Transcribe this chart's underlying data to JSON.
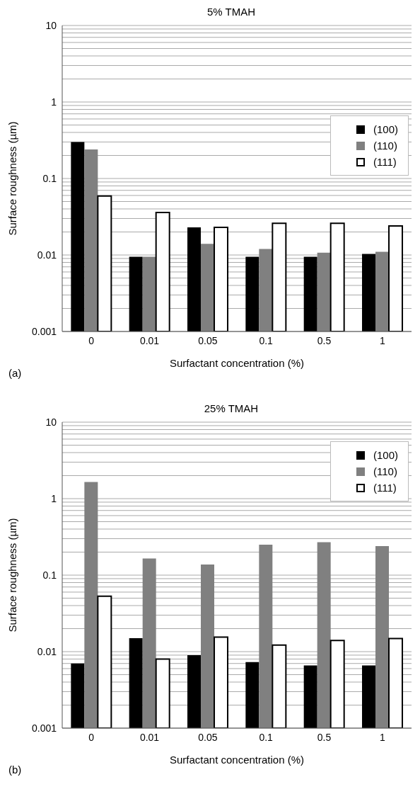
{
  "chart_data": [
    {
      "type": "bar",
      "title": "5% TMAH",
      "xlabel": "Surfactant concentration (%)",
      "ylabel": "Surface roughness (µm)",
      "annotations": [
        "(a)"
      ],
      "categories": [
        "0",
        "0.01",
        "0.05",
        "0.1",
        "0.5",
        "1"
      ],
      "series": [
        {
          "name": "(100)",
          "color": "#000000",
          "values": [
            0.3,
            0.0095,
            0.023,
            0.0095,
            0.0095,
            0.0103
          ]
        },
        {
          "name": "(110)",
          "color": "#808080",
          "values": [
            0.24,
            0.0095,
            0.014,
            0.012,
            0.0107,
            0.011
          ]
        },
        {
          "name": "(111)",
          "color": "#ffffff",
          "values": [
            0.059,
            0.036,
            0.023,
            0.026,
            0.026,
            0.024
          ]
        }
      ],
      "log": "y",
      "ylim": [
        0.001,
        10
      ],
      "yticks": [
        0.001,
        {
          "value": 0.002,
          "label": null
        },
        {
          "value": 0.003,
          "label": null
        },
        {
          "value": 0.004,
          "label": null
        },
        {
          "value": 0.005,
          "label": null
        },
        {
          "value": 0.006,
          "label": null
        },
        {
          "value": 0.007,
          "label": null
        },
        {
          "value": 0.008,
          "label": null
        },
        {
          "value": 0.009,
          "label": null
        },
        0.01,
        {
          "value": 0.02,
          "label": null
        },
        {
          "value": 0.03,
          "label": null
        },
        {
          "value": 0.04,
          "label": null
        },
        {
          "value": 0.05,
          "label": null
        },
        {
          "value": 0.06,
          "label": null
        },
        {
          "value": 0.07,
          "label": null
        },
        {
          "value": 0.08,
          "label": null
        },
        {
          "value": 0.09,
          "label": null
        },
        0.1,
        {
          "value": 0.2,
          "label": null
        },
        {
          "value": 0.3,
          "label": null
        },
        {
          "value": 0.4,
          "label": null
        },
        {
          "value": 0.5,
          "label": null
        },
        {
          "value": 0.6,
          "label": null
        },
        {
          "value": 0.7,
          "label": null
        },
        {
          "value": 0.8,
          "label": null
        },
        {
          "value": 0.9,
          "label": null
        },
        1,
        {
          "value": 2,
          "label": null
        },
        {
          "value": 3,
          "label": null
        },
        {
          "value": 4,
          "label": null
        },
        {
          "value": 5,
          "label": null
        },
        {
          "value": 6,
          "label": null
        },
        {
          "value": 7,
          "label": null
        },
        {
          "value": 8,
          "label": null
        },
        {
          "value": 9,
          "label": null
        },
        10
      ],
      "grid": "y",
      "legend": "right"
    },
    {
      "type": "bar",
      "title": "25% TMAH",
      "xlabel": "Surfactant concentration (%)",
      "ylabel": "Surface roughness (µm)",
      "annotations": [
        "(b)"
      ],
      "categories": [
        "0",
        "0.01",
        "0.05",
        "0.1",
        "0.5",
        "1"
      ],
      "series": [
        {
          "name": "(100)",
          "color": "#000000",
          "values": [
            0.007,
            0.015,
            0.009,
            0.0073,
            0.0066,
            0.0066
          ]
        },
        {
          "name": "(110)",
          "color": "#808080",
          "values": [
            1.65,
            0.165,
            0.138,
            0.25,
            0.27,
            0.24
          ]
        },
        {
          "name": "(111)",
          "color": "#ffffff",
          "values": [
            0.053,
            0.008,
            0.0155,
            0.0122,
            0.014,
            0.0148
          ]
        }
      ],
      "log": "y",
      "ylim": [
        0.001,
        10
      ],
      "yticks": [
        0.001,
        {
          "value": 0.002,
          "label": null
        },
        {
          "value": 0.003,
          "label": null
        },
        {
          "value": 0.004,
          "label": null
        },
        {
          "value": 0.005,
          "label": null
        },
        {
          "value": 0.006,
          "label": null
        },
        {
          "value": 0.007,
          "label": null
        },
        {
          "value": 0.008,
          "label": null
        },
        {
          "value": 0.009,
          "label": null
        },
        0.01,
        {
          "value": 0.02,
          "label": null
        },
        {
          "value": 0.03,
          "label": null
        },
        {
          "value": 0.04,
          "label": null
        },
        {
          "value": 0.05,
          "label": null
        },
        {
          "value": 0.06,
          "label": null
        },
        {
          "value": 0.07,
          "label": null
        },
        {
          "value": 0.08,
          "label": null
        },
        {
          "value": 0.09,
          "label": null
        },
        0.1,
        {
          "value": 0.2,
          "label": null
        },
        {
          "value": 0.3,
          "label": null
        },
        {
          "value": 0.4,
          "label": null
        },
        {
          "value": 0.5,
          "label": null
        },
        {
          "value": 0.6,
          "label": null
        },
        {
          "value": 0.7,
          "label": null
        },
        {
          "value": 0.8,
          "label": null
        },
        {
          "value": 0.9,
          "label": null
        },
        1,
        {
          "value": 2,
          "label": null
        },
        {
          "value": 3,
          "label": null
        },
        {
          "value": 4,
          "label": null
        },
        {
          "value": 5,
          "label": null
        },
        {
          "value": 6,
          "label": null
        },
        {
          "value": 7,
          "label": null
        },
        {
          "value": 8,
          "label": null
        },
        {
          "value": 9,
          "label": null
        },
        10
      ],
      "grid": "y",
      "legend": "top right"
    }
  ]
}
